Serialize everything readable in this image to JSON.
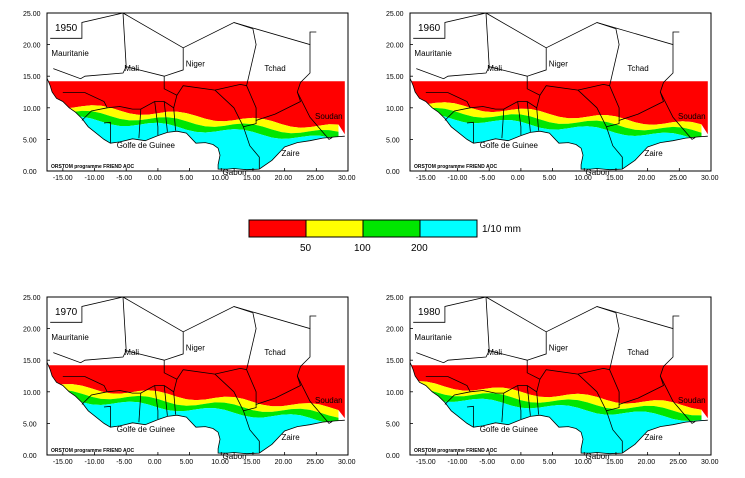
{
  "maps": [
    {
      "year": "1950",
      "variant": 0
    },
    {
      "year": "1960",
      "variant": 1
    },
    {
      "year": "1970",
      "variant": 2
    },
    {
      "year": "1980",
      "variant": 3
    }
  ],
  "x_ticks": [
    "-15.00",
    "-10.00",
    "-5.00",
    "0.00",
    "5.00",
    "10.00",
    "15.00",
    "20.00",
    "25.00",
    "30.00"
  ],
  "y_ticks": [
    "0.00",
    "5.00",
    "10.00",
    "15.00",
    "20.00",
    "25.00"
  ],
  "labels": {
    "mauritanie": "Mauritanie",
    "mali": "Mali",
    "niger": "Niger",
    "tchad": "Tchad",
    "soudan": "Soudan",
    "golfe": "Golfe de Guinee",
    "zaire": "Zaire",
    "gabon": "Gabon",
    "credit": "ORSTOM programme FRIEND AOC"
  },
  "legend": {
    "colors": [
      "#ff0000",
      "#ffff00",
      "#00e600",
      "#00ffff"
    ],
    "ticks": [
      "50",
      "100",
      "200"
    ],
    "unit": "1/10 mm"
  }
}
